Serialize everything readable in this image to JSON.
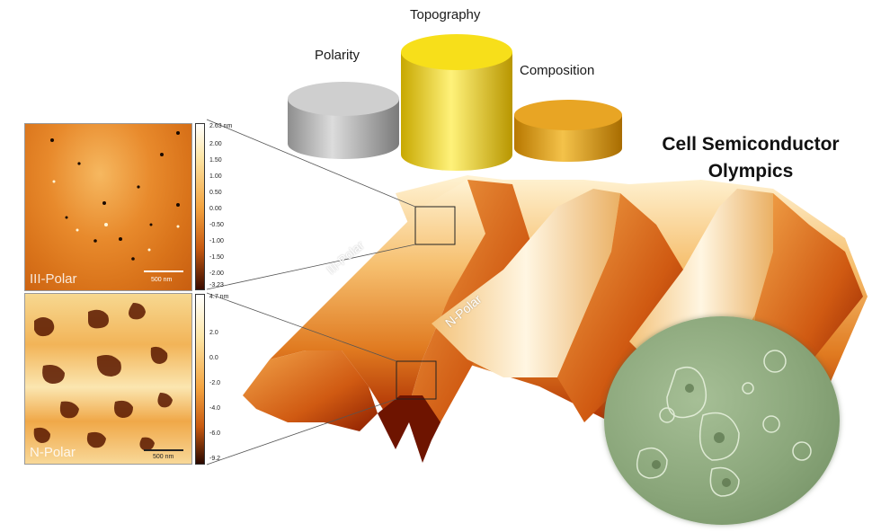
{
  "podiums": [
    {
      "label": "Polarity",
      "color": "#b9b9b9"
    },
    {
      "label": "Topography",
      "color": "#f2d000"
    },
    {
      "label": "Composition",
      "color": "#e3a014"
    }
  ],
  "title_lines": [
    "Cell Semiconductor",
    "Olympics"
  ],
  "panels": {
    "iii_polar": {
      "label": "III-Polar",
      "scalebar": "500 nm",
      "colorbar_ticks": [
        "2.63 nm",
        "2.00",
        "1.50",
        "1.00",
        "0.50",
        "0.00",
        "-0.50",
        "-1.00",
        "-1.50",
        "-2.00",
        "-3.23"
      ]
    },
    "n_polar": {
      "label": "N-Polar",
      "scalebar": "500 nm",
      "colorbar_ticks": [
        "4.7 nm",
        "2.0",
        "0.0",
        "-2.0",
        "-4.0",
        "-6.0",
        "-9.2"
      ]
    }
  },
  "surface": {
    "labels": [
      "III-Polar",
      "N-Polar"
    ],
    "colors": {
      "high": "#fff4d6",
      "mid": "#f0a040",
      "low": "#b83000"
    }
  },
  "cell_image": {
    "color": "#8aa67a"
  }
}
